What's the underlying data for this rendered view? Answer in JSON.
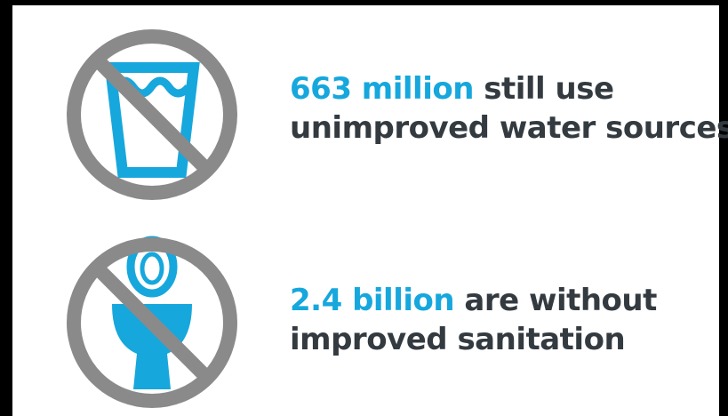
{
  "stats": [
    {
      "highlight": "663 million",
      "line1_rest": " still use",
      "line2": "unimproved water sources",
      "icon": "no-water-glass-icon"
    },
    {
      "highlight": "2.4 billion",
      "line1_rest": " are without",
      "line2": "improved sanitation",
      "icon": "no-toilet-icon"
    }
  ],
  "colors": {
    "accent": "#16a7dd",
    "text": "#333a40",
    "prohibition": "#8a8a8a",
    "frame": "#000000"
  }
}
